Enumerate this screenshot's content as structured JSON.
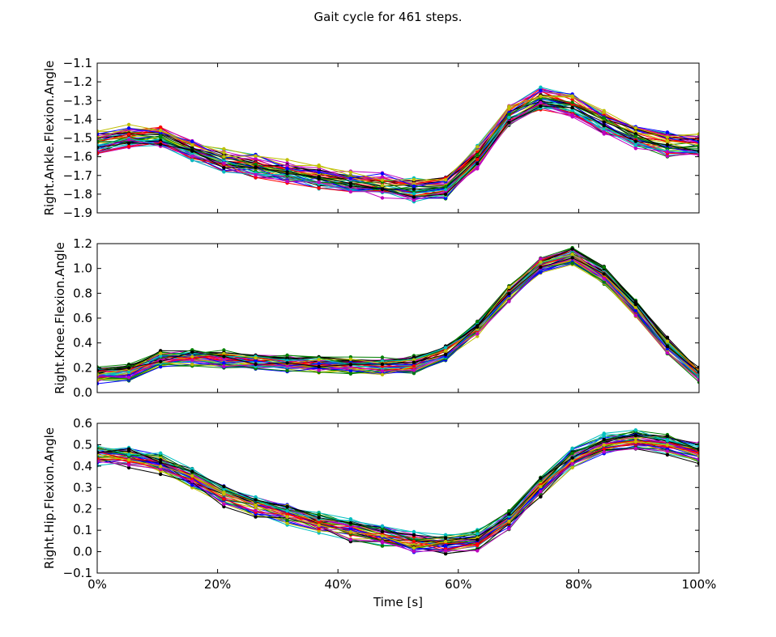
{
  "figure": {
    "title": "Gait cycle for 461 steps."
  },
  "chart_data": [
    {
      "type": "line",
      "ylabel": "Right.Ankle.Flexion.Angle",
      "xlabel": "",
      "ylim": [
        -1.9,
        -1.1
      ],
      "yticks": [
        "−1.9",
        "−1.8",
        "−1.7",
        "−1.6",
        "−1.5",
        "−1.4",
        "−1.3",
        "−1.2",
        "−1.1"
      ],
      "x": [
        0,
        5.26,
        10.53,
        15.79,
        21.05,
        26.32,
        31.58,
        36.84,
        42.11,
        47.37,
        52.63,
        57.89,
        63.16,
        68.42,
        73.68,
        78.95,
        84.21,
        89.47,
        94.74,
        100
      ],
      "mean": [
        -1.52,
        -1.49,
        -1.49,
        -1.56,
        -1.62,
        -1.65,
        -1.68,
        -1.71,
        -1.73,
        -1.75,
        -1.77,
        -1.76,
        -1.6,
        -1.38,
        -1.29,
        -1.32,
        -1.41,
        -1.49,
        -1.53,
        -1.54
      ],
      "spread": 0.045,
      "grid": false
    },
    {
      "type": "line",
      "ylabel": "Right.Knee.Flexion.Angle",
      "xlabel": "",
      "ylim": [
        0.0,
        1.2
      ],
      "yticks": [
        "0.0",
        "0.2",
        "0.4",
        "0.6",
        "0.8",
        "1.0",
        "1.2"
      ],
      "x": [
        0,
        5.26,
        10.53,
        15.79,
        21.05,
        26.32,
        31.58,
        36.84,
        42.11,
        47.37,
        52.63,
        57.89,
        63.16,
        68.42,
        73.68,
        78.95,
        84.21,
        89.47,
        94.74,
        100
      ],
      "mean": [
        0.15,
        0.17,
        0.27,
        0.29,
        0.27,
        0.25,
        0.24,
        0.23,
        0.22,
        0.21,
        0.23,
        0.32,
        0.52,
        0.8,
        1.03,
        1.1,
        0.95,
        0.68,
        0.38,
        0.15
      ],
      "spread": 0.05,
      "grid": false
    },
    {
      "type": "line",
      "ylabel": "Right.Hip.Flexion.Angle",
      "xlabel": "Time [s]",
      "ylim": [
        -0.1,
        0.6
      ],
      "yticks": [
        "−0.1",
        "0.0",
        "0.1",
        "0.2",
        "0.3",
        "0.4",
        "0.5",
        "0.6"
      ],
      "xticks": [
        "0%",
        "20%",
        "40%",
        "60%",
        "80%",
        "100%"
      ],
      "x": [
        0,
        5.26,
        10.53,
        15.79,
        21.05,
        26.32,
        31.58,
        36.84,
        42.11,
        47.37,
        52.63,
        57.89,
        63.16,
        68.42,
        73.68,
        78.95,
        84.21,
        89.47,
        94.74,
        100
      ],
      "mean": [
        0.45,
        0.44,
        0.41,
        0.34,
        0.26,
        0.21,
        0.17,
        0.13,
        0.1,
        0.07,
        0.04,
        0.03,
        0.05,
        0.15,
        0.3,
        0.43,
        0.5,
        0.52,
        0.5,
        0.46
      ],
      "spread": 0.035,
      "grid": false
    }
  ],
  "series_colors": [
    "#0000ff",
    "#008000",
    "#ff0000",
    "#00bfbf",
    "#bf00bf",
    "#bfbf00",
    "#000000"
  ],
  "series_count_drawn": 42
}
